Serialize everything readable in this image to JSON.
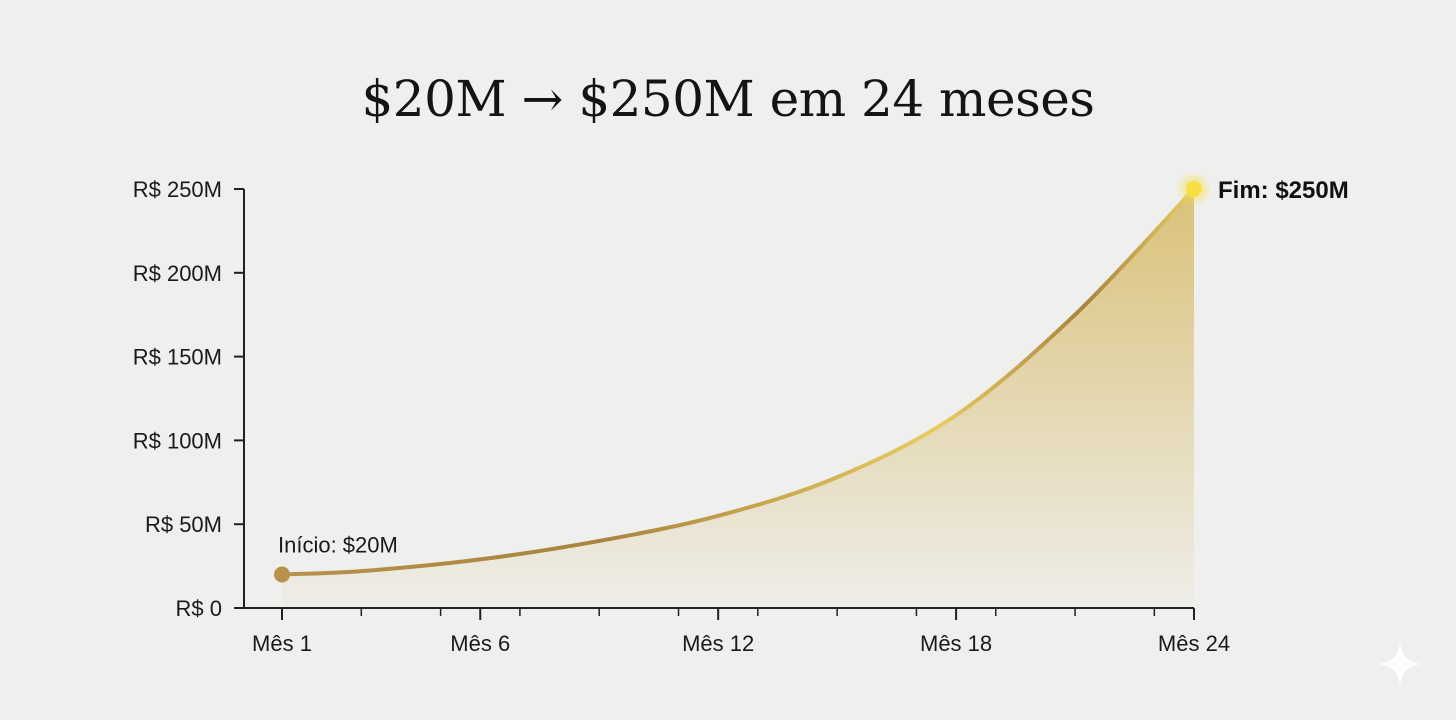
{
  "chart_data": {
    "type": "area",
    "title": "$20M → $250M em 24 meses",
    "xlabel": "",
    "ylabel": "",
    "x": [
      1,
      3,
      6,
      9,
      12,
      15,
      18,
      21,
      24
    ],
    "y": [
      20,
      22,
      29,
      40,
      55,
      78,
      115,
      175,
      250
    ],
    "xlim": [
      1,
      24
    ],
    "ylim": [
      0,
      250
    ],
    "x_ticks": [
      {
        "value": 1,
        "label": "Mês 1"
      },
      {
        "value": 6,
        "label": "Mês 6"
      },
      {
        "value": 12,
        "label": "Mês 12"
      },
      {
        "value": 18,
        "label": "Mês 18"
      },
      {
        "value": 24,
        "label": "Mês 24"
      }
    ],
    "y_ticks": [
      {
        "value": 0,
        "label": "R$ 0"
      },
      {
        "value": 50,
        "label": "R$ 50M"
      },
      {
        "value": 100,
        "label": "R$ 100M"
      },
      {
        "value": 150,
        "label": "R$ 150M"
      },
      {
        "value": 200,
        "label": "R$ 200M"
      },
      {
        "value": 250,
        "label": "R$ 250M"
      }
    ],
    "grid": false,
    "annotations": [
      {
        "x": 1,
        "y": 20,
        "text": "Início: $20M"
      },
      {
        "x": 24,
        "y": 250,
        "text": "Fim: $250M"
      }
    ],
    "colors": {
      "line_dark": "#a8843e",
      "line_bright": "#e8cc62",
      "fill": "#d9bf72",
      "start_marker": "#b8924c",
      "end_marker": "#f7de45",
      "axis": "#222222"
    }
  },
  "decorations": {
    "corner_icon": "sparkle-icon"
  }
}
